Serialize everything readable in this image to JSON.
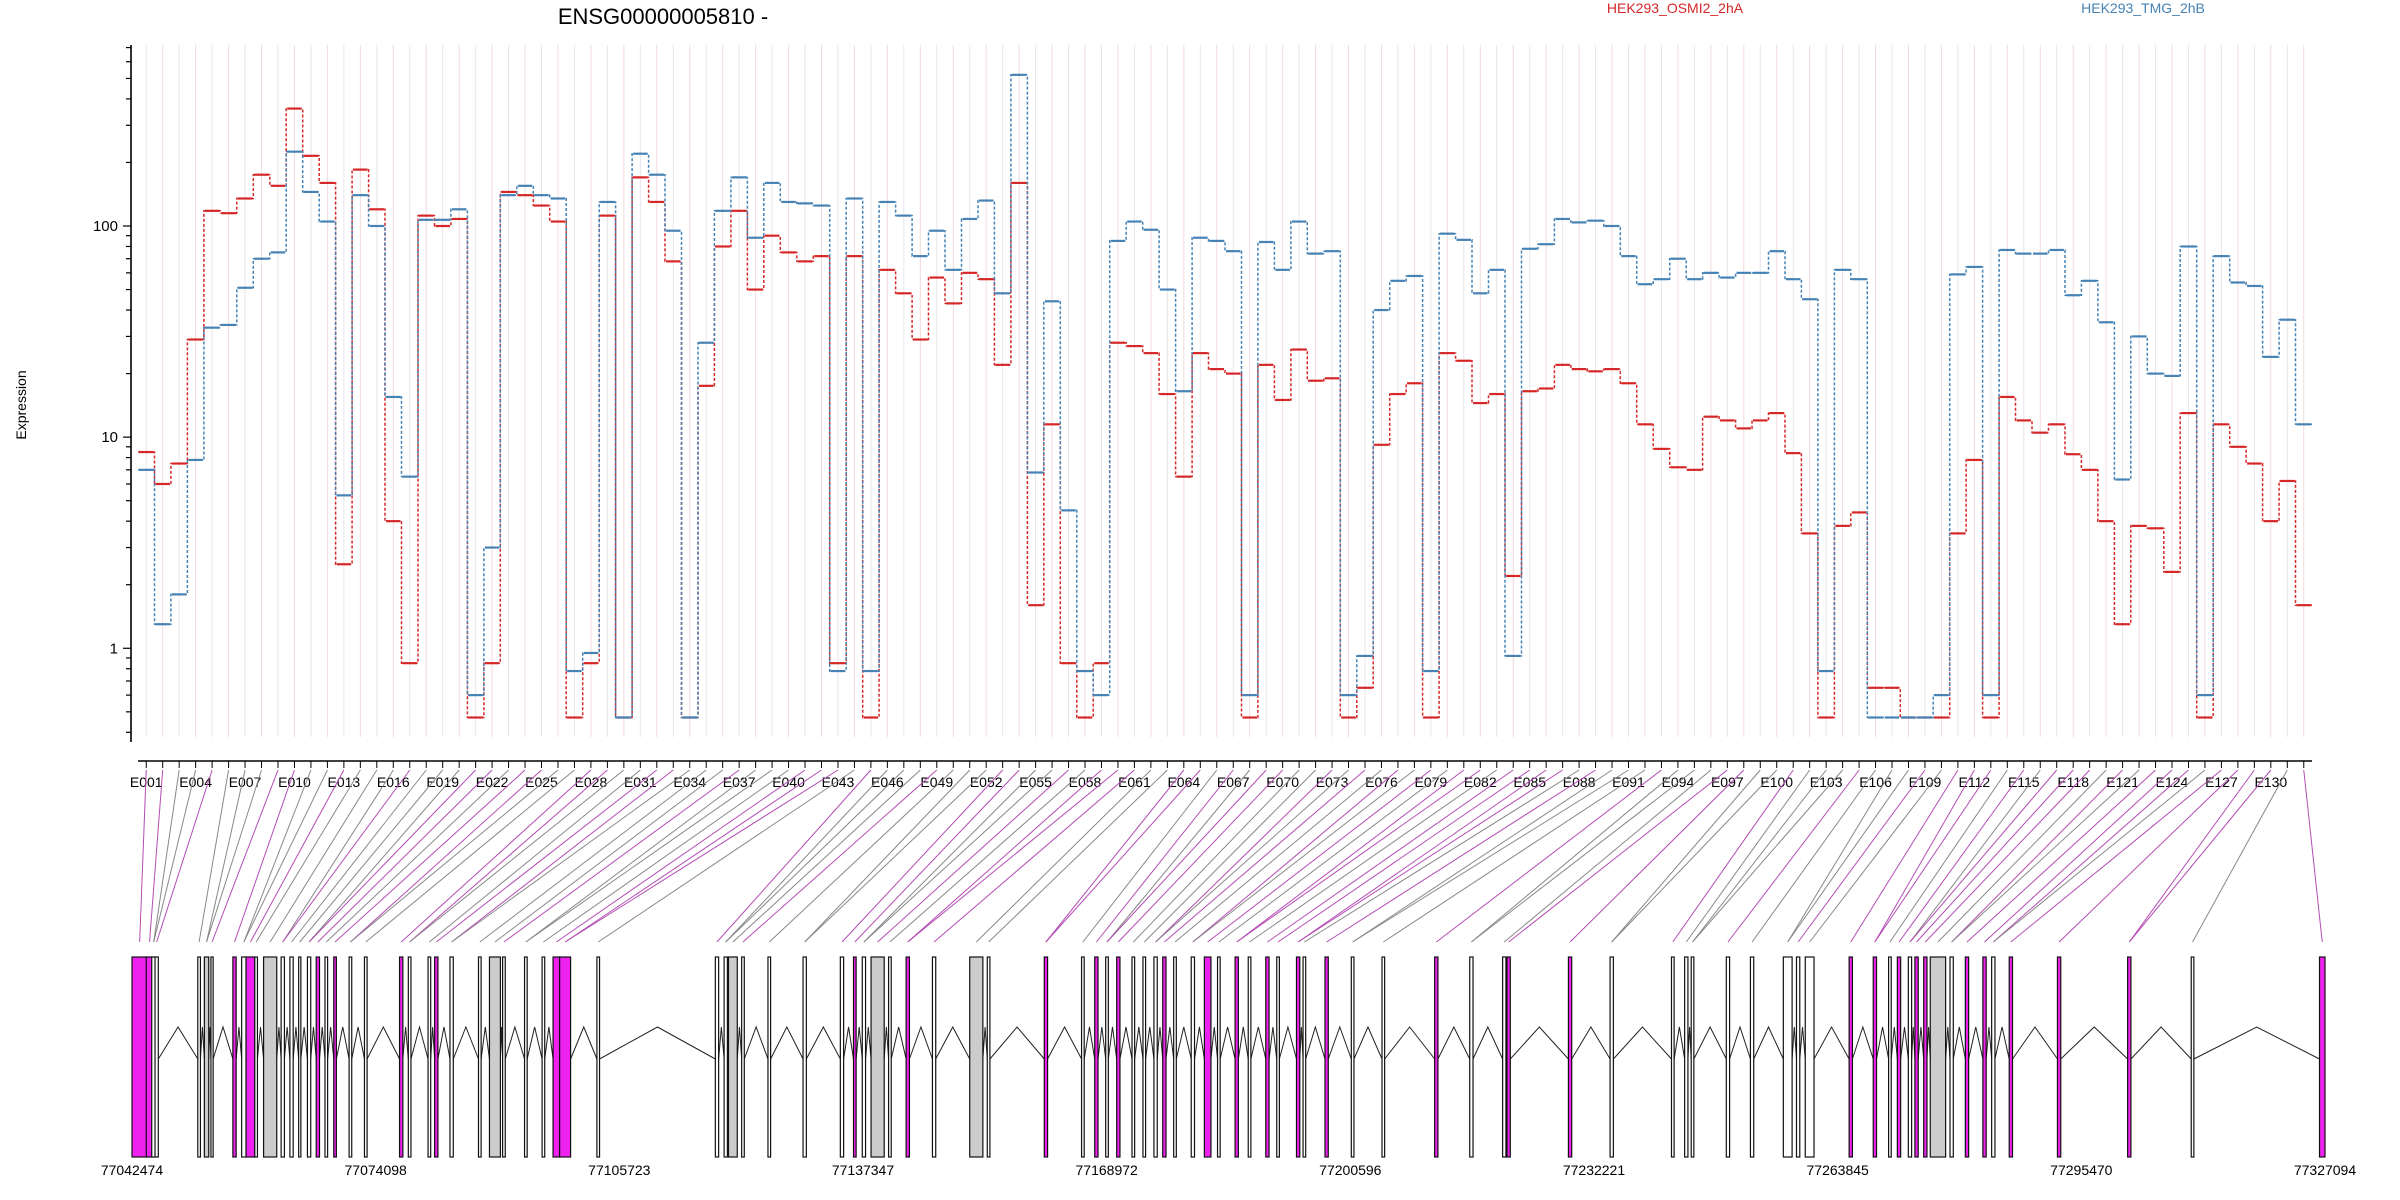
{
  "chart_data": {
    "type": "line",
    "title": "ENSG00000005810 -",
    "ylabel": "Expression",
    "yscale": "log",
    "ylim": [
      0.38,
      720
    ],
    "yticks": [
      1,
      10,
      100
    ],
    "ytick_labels": [
      "1",
      "10",
      "100"
    ],
    "exon_count": 132,
    "x_tick_labels": [
      "E001",
      "E004",
      "E007",
      "E010",
      "E013",
      "E016",
      "E019",
      "E022",
      "E025",
      "E028",
      "E031",
      "E034",
      "E037",
      "E040",
      "E043",
      "E046",
      "E049",
      "E052",
      "E055",
      "E058",
      "E061",
      "E064",
      "E067",
      "E070",
      "E073",
      "E076",
      "E079",
      "E082",
      "E085",
      "E088",
      "E091",
      "E094",
      "E097",
      "E100",
      "E103",
      "E106",
      "E109",
      "E112",
      "E115",
      "E118",
      "E121",
      "E124",
      "E127",
      "E130"
    ],
    "genomic_tick_labels": [
      "77042474",
      "77074098",
      "77105723",
      "77137347",
      "77168972",
      "77200596",
      "77232221",
      "77263845",
      "77295470",
      "77327094"
    ],
    "genomic_range": [
      77042474,
      77327094
    ],
    "colors": {
      "series_a": "#d62728",
      "series_b": "#4682b4",
      "exon_highlight": "#ee22ee",
      "exon_grey": "#cccccc",
      "connector_purple": "#b44cb4",
      "connector_grey": "#888888"
    },
    "series": [
      {
        "name": "HEK293_OSMI2_2hA",
        "color": "#d62728",
        "values": [
          8.5,
          6,
          7.5,
          29,
          118,
          115,
          135,
          175,
          155,
          360,
          215,
          160,
          2.5,
          185,
          120,
          4,
          0.85,
          112,
          100,
          108,
          0.47,
          0.85,
          145,
          140,
          125,
          105,
          0.47,
          0.85,
          112,
          0.47,
          170,
          130,
          68,
          0.47,
          17.5,
          80,
          118,
          50,
          90,
          75,
          68,
          72,
          0.85,
          72,
          0.47,
          62,
          48,
          29,
          57,
          43,
          60,
          56,
          22,
          160,
          1.6,
          11.5,
          0.85,
          0.47,
          0.85,
          28,
          27,
          25,
          16,
          6.5,
          25,
          21,
          20,
          0.47,
          22,
          15,
          26,
          18.5,
          19,
          0.47,
          0.65,
          9.2,
          16,
          18,
          0.47,
          25,
          23,
          14.5,
          16,
          2.2,
          16.5,
          17,
          22,
          21,
          20.5,
          21,
          18,
          11.5,
          8.8,
          7.2,
          7,
          12.5,
          12,
          11,
          12,
          13,
          8.4,
          3.5,
          0.47,
          3.8,
          4.4,
          0.65,
          0.65,
          0.47,
          0.47,
          0.47,
          3.5,
          7.8,
          0.47,
          15.5,
          12,
          10.5,
          11.5,
          8.3,
          7,
          4,
          1.3,
          3.8,
          3.7,
          2.3,
          13,
          0.47,
          11.5,
          9,
          7.5,
          4,
          6.2,
          1.6
        ]
      },
      {
        "name": "HEK293_TMG_2hB",
        "color": "#4682b4",
        "values": [
          7,
          1.3,
          1.8,
          7.8,
          33,
          34,
          51,
          70,
          75,
          225,
          145,
          105,
          5.3,
          140,
          100,
          15.5,
          6.5,
          107,
          107,
          120,
          0.6,
          3,
          140,
          155,
          140,
          135,
          0.78,
          0.95,
          130,
          0.47,
          220,
          175,
          95,
          0.47,
          28,
          118,
          170,
          88,
          160,
          130,
          128,
          125,
          0.78,
          135,
          0.78,
          130,
          112,
          72,
          95,
          62,
          108,
          132,
          48,
          520,
          6.8,
          44,
          4.5,
          0.78,
          0.6,
          85,
          105,
          96,
          50,
          16.5,
          88,
          85,
          76,
          0.6,
          84,
          62,
          105,
          74,
          76,
          0.6,
          0.92,
          40,
          55,
          58,
          0.78,
          92,
          86,
          48,
          62,
          0.92,
          78,
          82,
          108,
          104,
          106,
          100,
          72,
          53,
          56,
          70,
          56,
          60,
          57,
          60,
          60,
          76,
          56,
          45,
          0.78,
          62,
          56,
          0.47,
          0.47,
          0.47,
          0.47,
          0.6,
          59,
          64,
          0.6,
          77,
          74,
          74,
          77,
          47,
          55,
          35,
          6.3,
          30,
          20,
          19.5,
          80,
          0.6,
          72,
          54,
          52,
          24,
          36,
          11.5
        ]
      }
    ],
    "exons": [
      {
        "pos": 0.0,
        "w": 0.007,
        "hl": true
      },
      {
        "pos": 0.0065,
        "w": 0.003,
        "hl": true
      },
      {
        "pos": 0.009,
        "w": 0.0018,
        "hl": false
      },
      {
        "pos": 0.0105,
        "w": 0.0015,
        "hl": false
      },
      {
        "pos": 0.03,
        "w": 0.0012,
        "hl": false
      },
      {
        "pos": 0.033,
        "w": 0.002,
        "grey": true
      },
      {
        "pos": 0.036,
        "w": 0.001,
        "hl": false
      },
      {
        "pos": 0.046,
        "w": 0.0015,
        "hl": true
      },
      {
        "pos": 0.05,
        "w": 0.002,
        "hl": false
      },
      {
        "pos": 0.052,
        "w": 0.004,
        "hl": true
      },
      {
        "pos": 0.056,
        "w": 0.0012,
        "hl": false
      },
      {
        "pos": 0.06,
        "w": 0.006,
        "grey": true
      },
      {
        "pos": 0.068,
        "w": 0.0015,
        "hl": false
      },
      {
        "pos": 0.072,
        "w": 0.0015,
        "hl": false
      },
      {
        "pos": 0.076,
        "w": 0.001,
        "hl": false
      },
      {
        "pos": 0.08,
        "w": 0.0015,
        "hl": false
      },
      {
        "pos": 0.084,
        "w": 0.0015,
        "hl": true
      },
      {
        "pos": 0.088,
        "w": 0.0012,
        "hl": false
      },
      {
        "pos": 0.092,
        "w": 0.0012,
        "hl": true
      },
      {
        "pos": 0.099,
        "w": 0.0012,
        "hl": false
      },
      {
        "pos": 0.106,
        "w": 0.0012,
        "hl": false
      },
      {
        "pos": 0.122,
        "w": 0.0015,
        "hl": true
      },
      {
        "pos": 0.126,
        "w": 0.0012,
        "hl": false
      },
      {
        "pos": 0.135,
        "w": 0.0012,
        "hl": false
      },
      {
        "pos": 0.138,
        "w": 0.0015,
        "hl": true
      },
      {
        "pos": 0.145,
        "w": 0.0015,
        "hl": false
      },
      {
        "pos": 0.158,
        "w": 0.0012,
        "hl": false
      },
      {
        "pos": 0.163,
        "w": 0.005,
        "grey": true
      },
      {
        "pos": 0.169,
        "w": 0.0012,
        "hl": false
      },
      {
        "pos": 0.179,
        "w": 0.0012,
        "hl": false
      },
      {
        "pos": 0.187,
        "w": 0.0012,
        "hl": false
      },
      {
        "pos": 0.192,
        "w": 0.003,
        "hl": true
      },
      {
        "pos": 0.195,
        "w": 0.005,
        "hl": true
      },
      {
        "pos": 0.212,
        "w": 0.0012,
        "hl": false
      },
      {
        "pos": 0.266,
        "w": 0.0015,
        "hl": false
      },
      {
        "pos": 0.27,
        "w": 0.0015,
        "hl": false
      },
      {
        "pos": 0.272,
        "w": 0.004,
        "grey": true
      },
      {
        "pos": 0.278,
        "w": 0.0012,
        "hl": false
      },
      {
        "pos": 0.29,
        "w": 0.0012,
        "hl": false
      },
      {
        "pos": 0.306,
        "w": 0.0015,
        "hl": false
      },
      {
        "pos": 0.323,
        "w": 0.0015,
        "hl": false
      },
      {
        "pos": 0.329,
        "w": 0.0012,
        "hl": true
      },
      {
        "pos": 0.333,
        "w": 0.0015,
        "hl": false
      },
      {
        "pos": 0.337,
        "w": 0.006,
        "grey": true
      },
      {
        "pos": 0.345,
        "w": 0.0012,
        "hl": false
      },
      {
        "pos": 0.353,
        "w": 0.0015,
        "hl": true
      },
      {
        "pos": 0.365,
        "w": 0.0015,
        "hl": false
      },
      {
        "pos": 0.382,
        "w": 0.006,
        "grey": true
      },
      {
        "pos": 0.39,
        "w": 0.0012,
        "hl": false
      },
      {
        "pos": 0.416,
        "w": 0.0015,
        "hl": true
      },
      {
        "pos": 0.433,
        "w": 0.0012,
        "hl": false
      },
      {
        "pos": 0.439,
        "w": 0.0015,
        "hl": true
      },
      {
        "pos": 0.444,
        "w": 0.0012,
        "hl": false
      },
      {
        "pos": 0.449,
        "w": 0.0015,
        "hl": true
      },
      {
        "pos": 0.456,
        "w": 0.0012,
        "hl": false
      },
      {
        "pos": 0.461,
        "w": 0.0012,
        "hl": false
      },
      {
        "pos": 0.466,
        "w": 0.0015,
        "hl": false
      },
      {
        "pos": 0.47,
        "w": 0.0015,
        "hl": true
      },
      {
        "pos": 0.475,
        "w": 0.0012,
        "hl": false
      },
      {
        "pos": 0.483,
        "w": 0.0015,
        "hl": false
      },
      {
        "pos": 0.489,
        "w": 0.003,
        "hl": true
      },
      {
        "pos": 0.495,
        "w": 0.0012,
        "hl": false
      },
      {
        "pos": 0.503,
        "w": 0.0015,
        "hl": true
      },
      {
        "pos": 0.509,
        "w": 0.0012,
        "hl": false
      },
      {
        "pos": 0.517,
        "w": 0.0015,
        "hl": true
      },
      {
        "pos": 0.522,
        "w": 0.0012,
        "hl": false
      },
      {
        "pos": 0.531,
        "w": 0.0015,
        "hl": true
      },
      {
        "pos": 0.534,
        "w": 0.0012,
        "hl": false
      },
      {
        "pos": 0.544,
        "w": 0.0015,
        "hl": true
      },
      {
        "pos": 0.556,
        "w": 0.0012,
        "hl": false
      },
      {
        "pos": 0.57,
        "w": 0.0012,
        "hl": false
      },
      {
        "pos": 0.594,
        "w": 0.0015,
        "hl": true
      },
      {
        "pos": 0.61,
        "w": 0.0015,
        "hl": false
      },
      {
        "pos": 0.625,
        "w": 0.0015,
        "hl": false
      },
      {
        "pos": 0.627,
        "w": 0.0015,
        "hl": true
      },
      {
        "pos": 0.655,
        "w": 0.0015,
        "hl": true
      },
      {
        "pos": 0.674,
        "w": 0.0015,
        "hl": false
      },
      {
        "pos": 0.702,
        "w": 0.0012,
        "hl": false
      },
      {
        "pos": 0.708,
        "w": 0.0015,
        "hl": false
      },
      {
        "pos": 0.711,
        "w": 0.0012,
        "hl": false
      },
      {
        "pos": 0.727,
        "w": 0.0015,
        "hl": false
      },
      {
        "pos": 0.738,
        "w": 0.0015,
        "hl": false
      },
      {
        "pos": 0.753,
        "w": 0.004,
        "hl": false
      },
      {
        "pos": 0.759,
        "w": 0.0015,
        "hl": false
      },
      {
        "pos": 0.763,
        "w": 0.004,
        "hl": false
      },
      {
        "pos": 0.783,
        "w": 0.0015,
        "hl": true
      },
      {
        "pos": 0.794,
        "w": 0.0015,
        "hl": true
      },
      {
        "pos": 0.801,
        "w": 0.0012,
        "hl": false
      },
      {
        "pos": 0.805,
        "w": 0.0015,
        "hl": true
      },
      {
        "pos": 0.81,
        "w": 0.0015,
        "hl": false
      },
      {
        "pos": 0.813,
        "w": 0.0015,
        "hl": true
      },
      {
        "pos": 0.817,
        "w": 0.0015,
        "hl": true
      },
      {
        "pos": 0.82,
        "w": 0.007,
        "grey": true
      },
      {
        "pos": 0.829,
        "w": 0.0015,
        "hl": false
      },
      {
        "pos": 0.836,
        "w": 0.0015,
        "hl": true
      },
      {
        "pos": 0.844,
        "w": 0.0015,
        "hl": true
      },
      {
        "pos": 0.848,
        "w": 0.0015,
        "hl": false
      },
      {
        "pos": 0.856,
        "w": 0.0015,
        "hl": true
      },
      {
        "pos": 0.878,
        "w": 0.0015,
        "hl": true
      },
      {
        "pos": 0.91,
        "w": 0.0015,
        "hl": true
      },
      {
        "pos": 0.939,
        "w": 0.0012,
        "hl": false
      },
      {
        "pos": 0.9975,
        "w": 0.0025,
        "hl": true
      }
    ]
  },
  "legend": [
    {
      "label": "HEK293_OSMI2_2hA",
      "color": "#d62728"
    },
    {
      "label": "HEK293_TMG_2hB",
      "color": "#4682b4"
    }
  ]
}
